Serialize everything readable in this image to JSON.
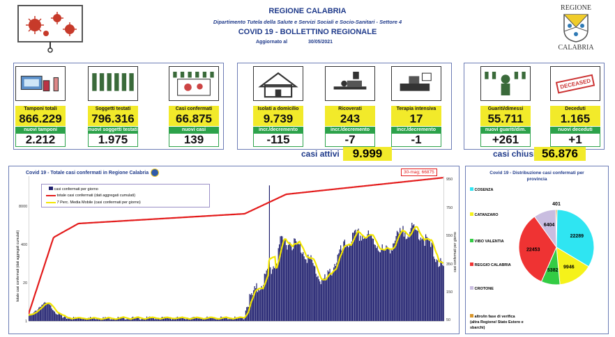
{
  "header": {
    "region": "REGIONE CALABRIA",
    "department": "Dipartimento Tutela della Salute e Servizi Sociali e Socio-Sanitari - Settore 4",
    "bulletin": "COVID 19 - BOLLETTINO REGIONALE",
    "updated_label": "Aggiornato al",
    "updated_date": "30/05/2021",
    "logo_top": "REGIONE",
    "logo_bottom": "CALABRIA"
  },
  "cards": [
    {
      "label": "Tamponi totali",
      "value": "866.229",
      "sub_label": "nuovi tamponi",
      "sub_value": "2.212"
    },
    {
      "label": "Soggetti testati",
      "value": "796.316",
      "sub_label": "nuovi soggetti testati",
      "sub_value": "1.975"
    },
    {
      "label": "Casi confermati",
      "value": "66.875",
      "sub_label": "nuovi casi",
      "sub_value": "139"
    },
    {
      "label": "Isolati a domicilio",
      "value": "9.739",
      "sub_label": "incr./decremento",
      "sub_value": "-115"
    },
    {
      "label": "Ricoverati",
      "value": "243",
      "sub_label": "incr./decremento",
      "sub_value": "-7"
    },
    {
      "label": "Terapia intensiva",
      "value": "17",
      "sub_label": "incr./decremento",
      "sub_value": "-1"
    },
    {
      "label": "Guariti/dimessi",
      "value": "55.711",
      "sub_label": "nuovi guariti/dim.",
      "sub_value": "+261"
    },
    {
      "label": "Deceduti",
      "value": "1.165",
      "sub_label": "nuovi deceduti",
      "sub_value": "+1"
    }
  ],
  "active": {
    "label": "casi attivi",
    "value": "9.999"
  },
  "closed": {
    "label": "casi chiusi",
    "value": "56.876"
  },
  "deceased_stamp": "DECEASED",
  "line_chart": {
    "title": "Covid 19 - Totale casi confermati in Regione Calabria",
    "callout": "30-mag; 66875",
    "legend": [
      "casi confermati per giorno",
      "totale casi confermati (dati aggregati cumulati)",
      "7 Perc. Media Mobile (casi confermati per giorno)"
    ],
    "left_axis_label": "totale casi confermati (dati aggregati cumulati)",
    "right_axis_label": "casi confermati per giorno",
    "left_ticks": [
      "8000",
      "400",
      "20",
      "1"
    ],
    "right_ticks": [
      "950",
      "750",
      "550",
      "350",
      "150",
      "50"
    ],
    "colors": {
      "bars": "#1f1f6e",
      "cumulative": "#e31b1b",
      "moving_avg": "#f3e600"
    }
  },
  "pie_chart": {
    "title": "Covid 19 - Distribuzione casi confermati per provincia",
    "legend": [
      {
        "name": "COSENZA",
        "color": "#2fe5f2"
      },
      {
        "name": "CATANZARO",
        "color": "#f5f21a"
      },
      {
        "name": "VIBO VALENTIA",
        "color": "#33cc44"
      },
      {
        "name": "REGGIO CALABRIA",
        "color": "#ef3333"
      },
      {
        "name": "CROTONE",
        "color": "#c9bde0"
      },
      {
        "name": "altro/in fase di verifica (altra Regione/ Stato Estero e sbarchi)",
        "color": "#d9962b"
      }
    ]
  },
  "chart_data": [
    {
      "type": "pie",
      "title": "Covid 19 - Distribuzione casi confermati per provincia",
      "categories": [
        "COSENZA",
        "CATANZARO",
        "VIBO VALENTIA",
        "REGGIO CALABRIA",
        "CROTONE",
        "altro/in fase di verifica"
      ],
      "values": [
        22289,
        9946,
        5382,
        22453,
        6404,
        401
      ]
    },
    {
      "type": "line",
      "title": "Covid 19 - Totale casi confermati in Regione Calabria",
      "series": [
        {
          "name": "totale casi confermati (dati aggregati cumulati)",
          "x": [
            "30-mag"
          ],
          "values": [
            66875
          ]
        }
      ]
    }
  ]
}
